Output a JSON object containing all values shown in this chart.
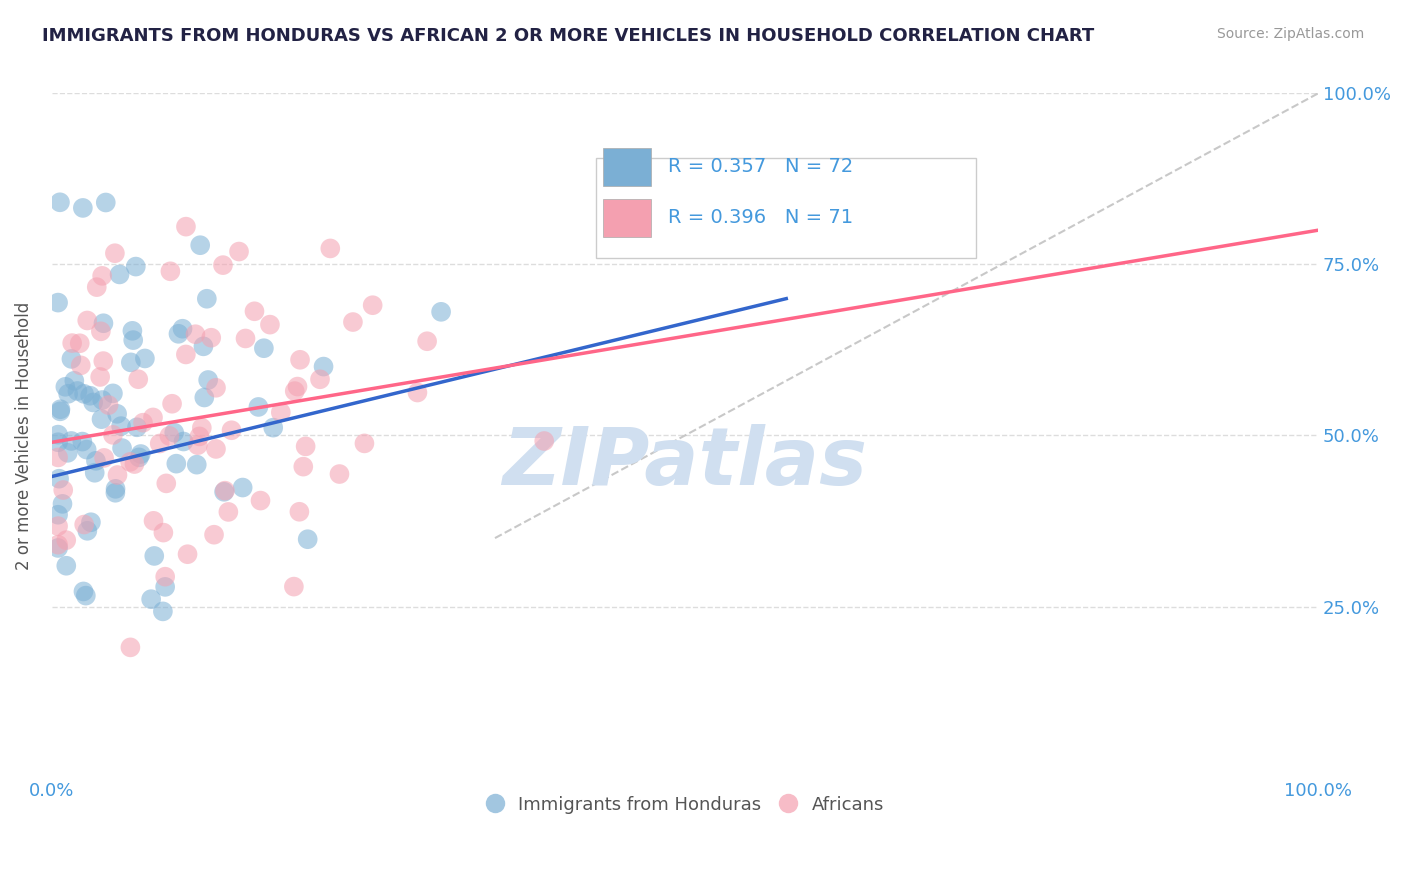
{
  "title": "IMMIGRANTS FROM HONDURAS VS AFRICAN 2 OR MORE VEHICLES IN HOUSEHOLD CORRELATION CHART",
  "source_text": "Source: ZipAtlas.com",
  "ylabel": "2 or more Vehicles in Household",
  "legend_r1": "R = 0.357",
  "legend_n1": "N = 72",
  "legend_r2": "R = 0.396",
  "legend_n2": "N = 71",
  "color_blue": "#7BAFD4",
  "color_pink": "#F4A0B0",
  "color_blue_line": "#3366CC",
  "color_pink_line": "#FF6688",
  "color_dashed": "#BBBBBB",
  "title_color": "#222244",
  "axis_label_color": "#555555",
  "tick_label_color_blue": "#4499DD",
  "watermark_color": "#D0DFF0",
  "background_color": "#FFFFFF",
  "grid_color": "#DDDDDD",
  "legend_label_blue": "Immigrants from Honduras",
  "legend_label_pink": "Africans"
}
